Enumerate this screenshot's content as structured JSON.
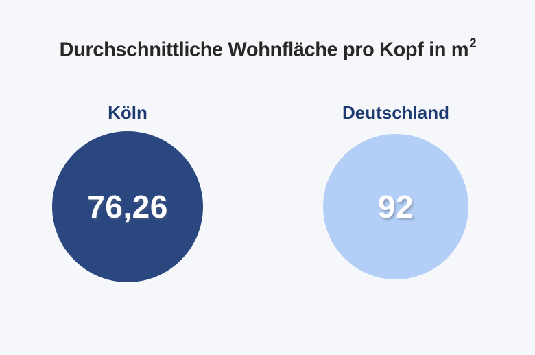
{
  "chart_data": {
    "type": "bubble",
    "title": "Durchschnittliche Wohnfläche pro Kopf in m²",
    "categories": [
      "Köln",
      "Deutschland"
    ],
    "values": [
      76.26,
      92
    ],
    "value_labels": [
      "76,26",
      "92"
    ],
    "unit": "m²",
    "colors": [
      "#2a4780",
      "#b3cff7"
    ],
    "label_color": "#1e3a72",
    "title_color": "#2b2626",
    "background_color": "#f6f7fa",
    "legend_position": "none",
    "grid": false
  },
  "title": {
    "main": "Durchschnittliche Wohnfläche pro Kopf in m",
    "superscript": "2"
  },
  "groups": [
    {
      "label": "Köln",
      "value": "76,26"
    },
    {
      "label": "Deutschland",
      "value": "92"
    }
  ]
}
